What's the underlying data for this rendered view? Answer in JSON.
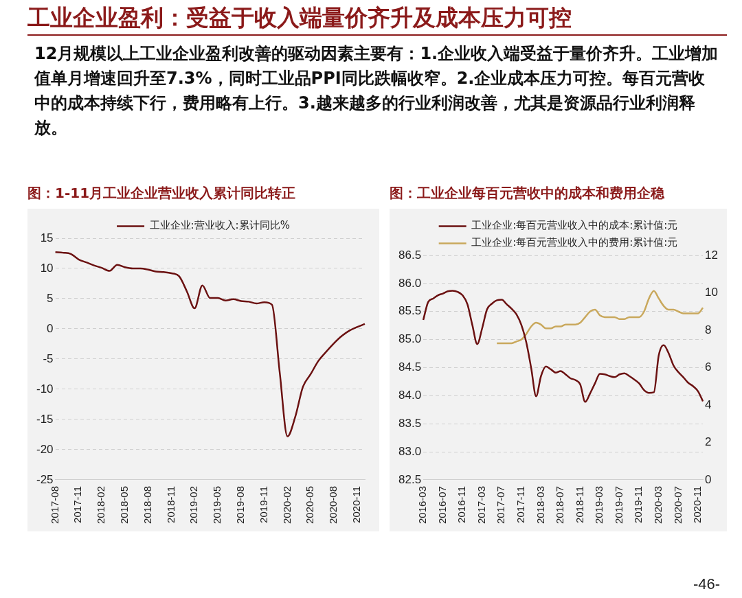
{
  "chart_data": [
    {
      "type": "other",
      "title": "工业企业盈利：受益于收入端量价齐升及成本压力可控",
      "subtitle": "12月规模以上工业企业盈利改善的驱动因素主要有：1.企业收入端受益于量价齐升。工业增加值单月增速回升至7.3%，同时工业品PPI同比跌幅收窄。2.企业成本压力可控。每百元营收中的成本持续下行，费用略有上行。3.越来越多的行业利润改善，尤其是资源品行业利润释放。",
      "annotations": [
        "-46-"
      ]
    },
    {
      "type": "line",
      "title": "图：1-11月工业企业营业收入累计同比转正",
      "categories": [
        "2017-08",
        null,
        null,
        "2017-11",
        null,
        null,
        "2018-02",
        null,
        null,
        "2018-05",
        null,
        null,
        "2018-08",
        null,
        null,
        "2018-11",
        null,
        null,
        "2019-02",
        null,
        null,
        "2019-05",
        null,
        null,
        "2019-08",
        null,
        null,
        "2019-11",
        null,
        null,
        "2020-02",
        null,
        null,
        "2020-05",
        null,
        null,
        "2020-08",
        null,
        null,
        "2020-11",
        null
      ],
      "series": [
        {
          "name": "工业企业:营业收入:累计同比%",
          "color": "#6b1111",
          "values": [
            12.7,
            12.6,
            12.4,
            11.5,
            11.0,
            10.5,
            10.1,
            9.6,
            10.6,
            10.2,
            10.0,
            10.0,
            9.8,
            9.5,
            9.4,
            9.2,
            8.7,
            6.2,
            3.4,
            7.2,
            5.1,
            5.1,
            4.7,
            4.9,
            4.6,
            4.5,
            4.2,
            4.4,
            4.0,
            -7.2,
            -17.8,
            -14.6,
            -9.6,
            -7.5,
            -5.3,
            -3.8,
            -2.4,
            -1.2,
            -0.3,
            0.3,
            0.8
          ]
        }
      ],
      "ylim": [
        -25,
        15
      ],
      "yticks": [
        -25,
        -20,
        -15,
        -10,
        -5,
        0,
        5,
        10,
        15
      ],
      "grid": "y",
      "legend": "top",
      "marker": "none",
      "line_style": "solid"
    },
    {
      "type": "line",
      "title": "图：工业企业每百元营收中的成本和费用企稳",
      "categories": [
        "2016-03",
        null,
        null,
        null,
        "2016-07",
        null,
        null,
        null,
        "2016-11",
        null,
        null,
        null,
        "2017-03",
        null,
        null,
        null,
        "2017-07",
        null,
        null,
        null,
        "2017-11",
        null,
        null,
        null,
        "2018-03",
        null,
        null,
        null,
        "2018-07",
        null,
        null,
        null,
        "2018-11",
        null,
        null,
        null,
        "2019-03",
        null,
        null,
        null,
        "2019-07",
        null,
        null,
        null,
        "2019-11",
        null,
        null,
        null,
        "2020-03",
        null,
        null,
        null,
        "2020-07",
        null,
        null,
        null,
        "2020-11",
        null
      ],
      "series": [
        {
          "name": "工业企业:每百元营业收入中的成本:累计值:元",
          "color": "#6b1111",
          "values": [
            85.35,
            85.67,
            85.73,
            85.79,
            85.82,
            85.86,
            85.87,
            85.85,
            85.79,
            85.63,
            85.26,
            84.92,
            85.2,
            85.54,
            85.64,
            85.7,
            85.71,
            85.63,
            85.55,
            85.45,
            85.26,
            84.95,
            84.49,
            83.99,
            84.35,
            84.52,
            84.47,
            84.41,
            84.44,
            84.38,
            84.31,
            84.28,
            84.2,
            83.89,
            84.04,
            84.22,
            84.39,
            84.38,
            84.35,
            84.33,
            84.38,
            84.4,
            84.35,
            84.29,
            84.22,
            84.1,
            84.05,
            84.06,
            84.72,
            84.9,
            84.76,
            84.54,
            84.42,
            84.33,
            84.23,
            84.17,
            84.08,
            83.9
          ]
        },
        {
          "name": "工业企业:每百元营业收入中的费用:累计值:元",
          "color": "#c9a85c",
          "axis": "y2",
          "values": [
            null,
            null,
            null,
            null,
            null,
            null,
            null,
            null,
            null,
            null,
            null,
            null,
            null,
            null,
            null,
            7.3,
            7.3,
            7.3,
            7.3,
            7.4,
            7.5,
            7.8,
            8.2,
            8.4,
            8.3,
            8.1,
            8.1,
            8.2,
            8.2,
            8.3,
            8.3,
            8.3,
            8.4,
            8.7,
            9.0,
            9.1,
            8.8,
            8.7,
            8.7,
            8.7,
            8.6,
            8.6,
            8.7,
            8.7,
            8.7,
            9.0,
            9.7,
            10.1,
            9.7,
            9.3,
            9.1,
            9.1,
            9.0,
            8.9,
            8.9,
            8.9,
            8.9,
            9.2
          ]
        }
      ],
      "ylim": [
        82.5,
        86.5
      ],
      "yticks": [
        82.5,
        {
          "value": 83,
          "label": "83.0"
        },
        83.5,
        {
          "value": 84,
          "label": "84.0"
        },
        84.5,
        {
          "value": 85,
          "label": "85.0"
        },
        85.5,
        {
          "value": 86,
          "label": "86.0"
        },
        86.5
      ],
      "y2lim": [
        0,
        12
      ],
      "y2ticks": [
        0,
        2,
        4,
        6,
        8,
        10,
        12
      ],
      "grid": "y",
      "legend": "top",
      "marker": "none",
      "line_style": "solid"
    }
  ]
}
